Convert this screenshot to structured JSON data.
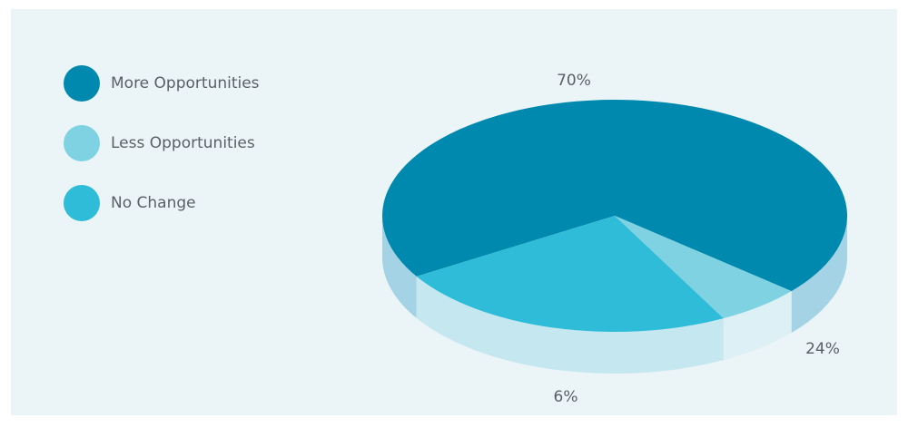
{
  "chart_data": {
    "type": "pie",
    "style": "3d",
    "title": "",
    "legend_position": "left",
    "slices": [
      {
        "label": "More Opportunities",
        "value": 70,
        "value_label": "70%",
        "color": "#0089ae",
        "side_color": "#a3d3e4"
      },
      {
        "label": "Less Opportunities",
        "value": 6,
        "value_label": "6%",
        "color": "#7ed2e1",
        "side_color": "#dcf0f5"
      },
      {
        "label": "No Change",
        "value": 24,
        "value_label": "24%",
        "color": "#2ebcd8",
        "side_color": "#c5e7f0"
      }
    ]
  }
}
